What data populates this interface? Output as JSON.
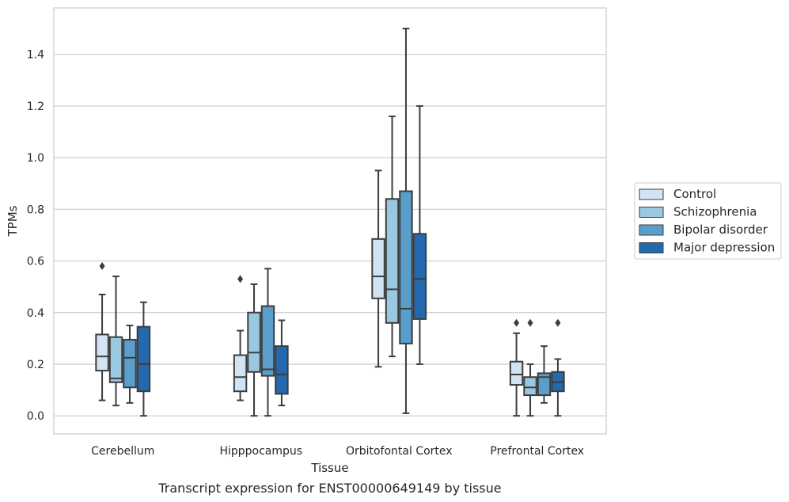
{
  "caption": "Transcript expression for ENST00000649149 by tissue",
  "chart_data": {
    "type": "box",
    "xlabel": "Tissue",
    "ylabel": "TPMs",
    "ylim": [
      -0.07,
      1.58
    ],
    "yticks": [
      "0.0",
      "0.2",
      "0.4",
      "0.6",
      "0.8",
      "1.0",
      "1.2",
      "1.4"
    ],
    "grid": "horizontal",
    "legend_position": "right",
    "categories": [
      "Cerebellum",
      "Hipppocampus",
      "Orbitofontal Cortex",
      "Prefrontal Cortex"
    ],
    "series": [
      {
        "name": "Control",
        "color": "#d2e3f3",
        "boxes": [
          {
            "low": 0.06,
            "q1": 0.175,
            "median": 0.23,
            "q3": 0.315,
            "high": 0.47,
            "outliers": [
              0.58
            ]
          },
          {
            "low": 0.06,
            "q1": 0.095,
            "median": 0.15,
            "q3": 0.235,
            "high": 0.33,
            "outliers": [
              0.53
            ]
          },
          {
            "low": 0.19,
            "q1": 0.455,
            "median": 0.54,
            "q3": 0.685,
            "high": 0.95,
            "outliers": []
          },
          {
            "low": 0.0,
            "q1": 0.12,
            "median": 0.16,
            "q3": 0.21,
            "high": 0.32,
            "outliers": [
              0.36
            ]
          }
        ]
      },
      {
        "name": "Schizophrenia",
        "color": "#9ac8e0",
        "boxes": [
          {
            "low": 0.04,
            "q1": 0.13,
            "median": 0.145,
            "q3": 0.305,
            "high": 0.54,
            "outliers": []
          },
          {
            "low": 0.0,
            "q1": 0.17,
            "median": 0.245,
            "q3": 0.4,
            "high": 0.51,
            "outliers": []
          },
          {
            "low": 0.23,
            "q1": 0.36,
            "median": 0.49,
            "q3": 0.84,
            "high": 1.16,
            "outliers": []
          },
          {
            "low": 0.0,
            "q1": 0.08,
            "median": 0.11,
            "q3": 0.15,
            "high": 0.2,
            "outliers": [
              0.36
            ]
          }
        ]
      },
      {
        "name": "Bipolar disorder",
        "color": "#5a9fcb",
        "boxes": [
          {
            "low": 0.05,
            "q1": 0.11,
            "median": 0.225,
            "q3": 0.295,
            "high": 0.35,
            "outliers": []
          },
          {
            "low": 0.0,
            "q1": 0.155,
            "median": 0.18,
            "q3": 0.425,
            "high": 0.57,
            "outliers": []
          },
          {
            "low": 0.01,
            "q1": 0.28,
            "median": 0.415,
            "q3": 0.87,
            "high": 1.5,
            "outliers": []
          },
          {
            "low": 0.05,
            "q1": 0.08,
            "median": 0.15,
            "q3": 0.165,
            "high": 0.27,
            "outliers": []
          }
        ]
      },
      {
        "name": "Major depression",
        "color": "#2468ad",
        "boxes": [
          {
            "low": 0.0,
            "q1": 0.095,
            "median": 0.2,
            "q3": 0.345,
            "high": 0.44,
            "outliers": []
          },
          {
            "low": 0.04,
            "q1": 0.085,
            "median": 0.16,
            "q3": 0.27,
            "high": 0.37,
            "outliers": []
          },
          {
            "low": 0.2,
            "q1": 0.375,
            "median": 0.53,
            "q3": 0.705,
            "high": 1.2,
            "outliers": []
          },
          {
            "low": 0.0,
            "q1": 0.095,
            "median": 0.13,
            "q3": 0.17,
            "high": 0.22,
            "outliers": [
              0.36
            ]
          }
        ]
      }
    ]
  }
}
